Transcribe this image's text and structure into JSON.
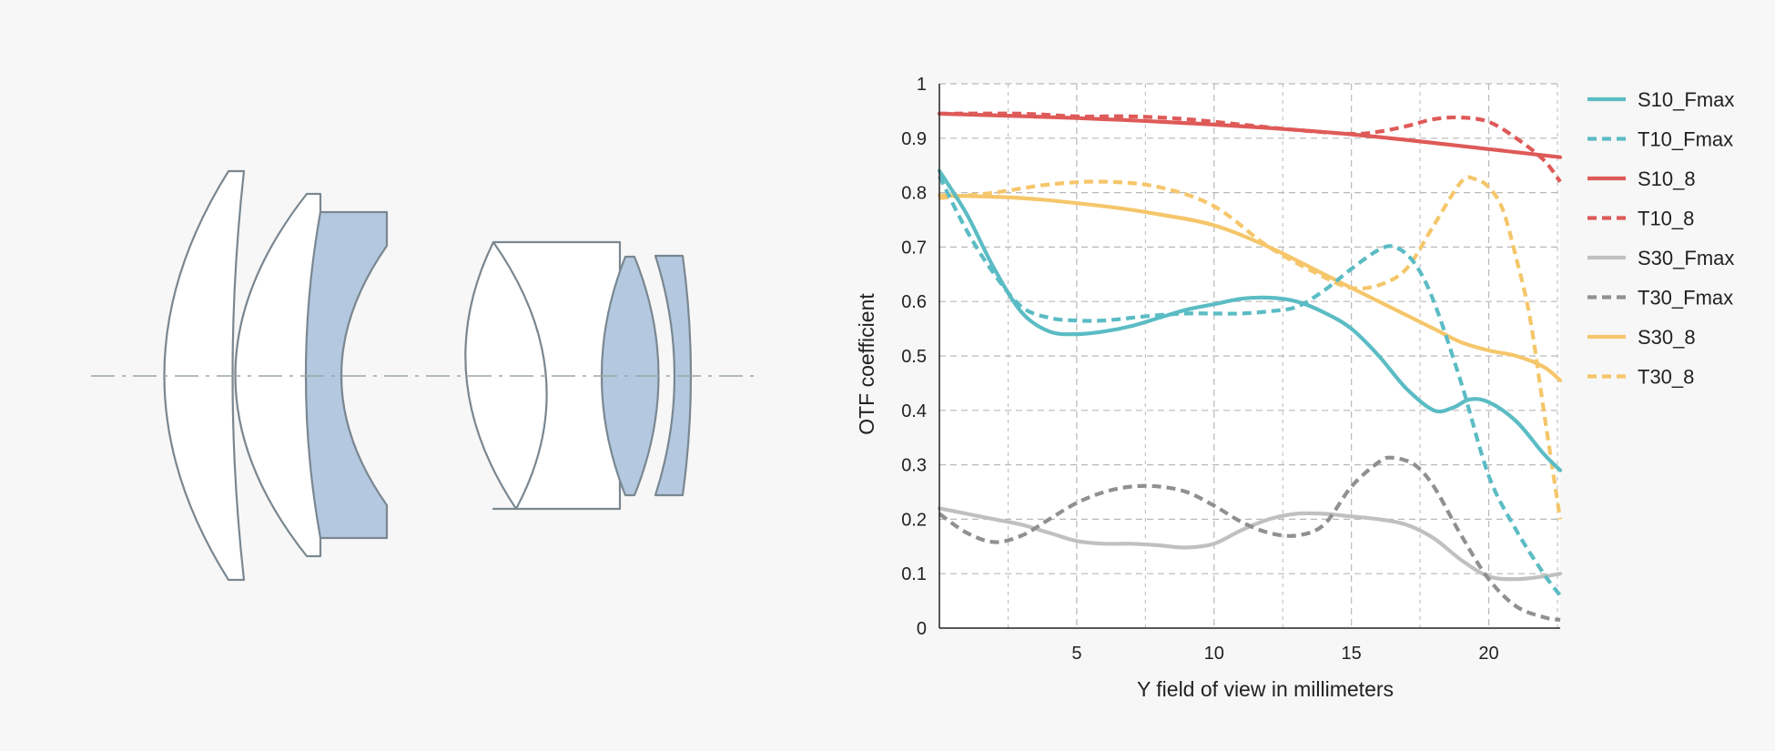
{
  "colors": {
    "background": "#f7f7f7",
    "plot_background": "#ffffff",
    "lens_white": "#ffffff",
    "lens_blue": "#b4c8e0",
    "lens_stroke": "#7a8791",
    "axis_line": "#9aa5a8",
    "grid": "#b8b8b8",
    "teal": "#5bbcc4",
    "red": "#de5a58",
    "gray": "#9e9e9e",
    "lightgray": "#c0c0c0",
    "yellow": "#f5c66a",
    "darkgray": "#909090"
  },
  "diagram": {
    "name": "lens-element-layout",
    "groups": [
      {
        "name": "front-group",
        "elements": [
          "meniscus-1",
          "meniscus-2",
          "concave-blue"
        ]
      },
      {
        "name": "rear-group",
        "elements": [
          "cemented-doublet",
          "biconvex-blue",
          "meniscus-blue"
        ]
      }
    ]
  },
  "chart_data": {
    "type": "line",
    "xlabel": "Y field of view in millimeters",
    "ylabel": "OTF coefficient",
    "xlim": [
      0,
      22.6
    ],
    "ylim": [
      0,
      1
    ],
    "xticks": [
      5,
      10,
      15,
      20
    ],
    "xtick_labels": [
      "5",
      "10",
      "15",
      "20"
    ],
    "yticks": [
      0,
      0.1,
      0.2,
      0.3,
      0.4,
      0.5,
      0.6,
      0.7,
      0.8,
      0.9,
      1
    ],
    "ytick_labels": [
      "0",
      "0.1",
      "0.2",
      "0.3",
      "0.4",
      "0.5",
      "0.6",
      "0.7",
      "0.8",
      "0.9",
      "1"
    ],
    "grid": true,
    "legend_position": "right",
    "series": [
      {
        "name": "S10_Fmax",
        "color_key": "teal",
        "dashed": false,
        "points": [
          [
            0,
            0.84
          ],
          [
            1,
            0.76
          ],
          [
            2,
            0.66
          ],
          [
            3,
            0.58
          ],
          [
            4,
            0.545
          ],
          [
            5,
            0.54
          ],
          [
            6,
            0.545
          ],
          [
            7,
            0.555
          ],
          [
            8,
            0.57
          ],
          [
            9,
            0.585
          ],
          [
            10,
            0.595
          ],
          [
            11,
            0.605
          ],
          [
            12,
            0.607
          ],
          [
            13,
            0.6
          ],
          [
            14,
            0.58
          ],
          [
            15,
            0.55
          ],
          [
            16,
            0.5
          ],
          [
            17,
            0.44
          ],
          [
            18,
            0.4
          ],
          [
            18.7,
            0.405
          ],
          [
            19.3,
            0.42
          ],
          [
            20,
            0.415
          ],
          [
            21,
            0.38
          ],
          [
            22,
            0.32
          ],
          [
            22.6,
            0.29
          ]
        ]
      },
      {
        "name": "T10_Fmax",
        "color_key": "teal",
        "dashed": true,
        "points": [
          [
            0,
            0.83
          ],
          [
            1,
            0.73
          ],
          [
            2,
            0.65
          ],
          [
            3,
            0.59
          ],
          [
            4,
            0.57
          ],
          [
            5,
            0.565
          ],
          [
            6,
            0.565
          ],
          [
            7,
            0.57
          ],
          [
            8,
            0.575
          ],
          [
            9,
            0.578
          ],
          [
            10,
            0.578
          ],
          [
            11,
            0.578
          ],
          [
            12,
            0.582
          ],
          [
            13,
            0.59
          ],
          [
            14,
            0.62
          ],
          [
            15,
            0.66
          ],
          [
            16,
            0.695
          ],
          [
            16.6,
            0.7
          ],
          [
            17.3,
            0.67
          ],
          [
            18,
            0.6
          ],
          [
            19,
            0.45
          ],
          [
            20,
            0.28
          ],
          [
            21,
            0.18
          ],
          [
            22,
            0.1
          ],
          [
            22.6,
            0.06
          ]
        ]
      },
      {
        "name": "S10_8",
        "color_key": "red",
        "dashed": false,
        "points": [
          [
            0,
            0.945
          ],
          [
            5,
            0.937
          ],
          [
            10,
            0.925
          ],
          [
            15,
            0.907
          ],
          [
            20,
            0.88
          ],
          [
            22.6,
            0.865
          ]
        ]
      },
      {
        "name": "T10_8",
        "color_key": "red",
        "dashed": true,
        "points": [
          [
            0,
            0.945
          ],
          [
            3,
            0.945
          ],
          [
            5,
            0.94
          ],
          [
            7,
            0.94
          ],
          [
            9,
            0.935
          ],
          [
            11,
            0.925
          ],
          [
            13,
            0.915
          ],
          [
            15,
            0.908
          ],
          [
            16,
            0.912
          ],
          [
            17,
            0.922
          ],
          [
            18,
            0.935
          ],
          [
            19,
            0.938
          ],
          [
            20,
            0.93
          ],
          [
            21,
            0.9
          ],
          [
            22,
            0.86
          ],
          [
            22.6,
            0.82
          ]
        ]
      },
      {
        "name": "S30_Fmax",
        "color_key": "lightgray",
        "dashed": false,
        "points": [
          [
            0,
            0.22
          ],
          [
            1,
            0.21
          ],
          [
            2,
            0.2
          ],
          [
            3,
            0.19
          ],
          [
            4,
            0.175
          ],
          [
            5,
            0.16
          ],
          [
            6,
            0.155
          ],
          [
            7,
            0.155
          ],
          [
            8,
            0.152
          ],
          [
            9,
            0.148
          ],
          [
            10,
            0.155
          ],
          [
            11,
            0.18
          ],
          [
            12,
            0.2
          ],
          [
            13,
            0.21
          ],
          [
            14,
            0.21
          ],
          [
            15,
            0.205
          ],
          [
            16,
            0.2
          ],
          [
            17,
            0.19
          ],
          [
            18,
            0.165
          ],
          [
            19,
            0.125
          ],
          [
            20,
            0.095
          ],
          [
            21,
            0.09
          ],
          [
            22,
            0.095
          ],
          [
            22.6,
            0.1
          ]
        ]
      },
      {
        "name": "T30_Fmax",
        "color_key": "darkgray",
        "dashed": true,
        "points": [
          [
            0,
            0.21
          ],
          [
            1,
            0.175
          ],
          [
            2,
            0.158
          ],
          [
            3,
            0.17
          ],
          [
            4,
            0.2
          ],
          [
            5,
            0.23
          ],
          [
            6,
            0.25
          ],
          [
            7,
            0.26
          ],
          [
            8,
            0.26
          ],
          [
            9,
            0.25
          ],
          [
            10,
            0.225
          ],
          [
            11,
            0.195
          ],
          [
            12,
            0.175
          ],
          [
            13,
            0.17
          ],
          [
            14,
            0.19
          ],
          [
            15,
            0.26
          ],
          [
            16,
            0.305
          ],
          [
            16.5,
            0.313
          ],
          [
            17.3,
            0.3
          ],
          [
            18,
            0.26
          ],
          [
            19,
            0.17
          ],
          [
            20,
            0.09
          ],
          [
            21,
            0.04
          ],
          [
            22,
            0.02
          ],
          [
            22.6,
            0.015
          ]
        ]
      },
      {
        "name": "S30_8",
        "color_key": "yellow",
        "dashed": false,
        "points": [
          [
            0,
            0.795
          ],
          [
            3,
            0.79
          ],
          [
            6,
            0.775
          ],
          [
            8,
            0.76
          ],
          [
            10,
            0.74
          ],
          [
            12,
            0.7
          ],
          [
            14,
            0.65
          ],
          [
            16,
            0.6
          ],
          [
            18,
            0.55
          ],
          [
            19,
            0.525
          ],
          [
            20,
            0.51
          ],
          [
            21,
            0.5
          ],
          [
            22,
            0.48
          ],
          [
            22.6,
            0.455
          ]
        ]
      },
      {
        "name": "T30_8",
        "color_key": "yellow",
        "dashed": true,
        "points": [
          [
            0,
            0.79
          ],
          [
            2,
            0.8
          ],
          [
            4,
            0.815
          ],
          [
            6,
            0.82
          ],
          [
            8,
            0.81
          ],
          [
            10,
            0.775
          ],
          [
            12,
            0.7
          ],
          [
            14,
            0.645
          ],
          [
            15,
            0.625
          ],
          [
            16,
            0.63
          ],
          [
            17,
            0.66
          ],
          [
            18,
            0.74
          ],
          [
            19,
            0.82
          ],
          [
            19.5,
            0.825
          ],
          [
            20,
            0.81
          ],
          [
            20.5,
            0.77
          ],
          [
            21,
            0.68
          ],
          [
            21.5,
            0.57
          ],
          [
            22,
            0.4
          ],
          [
            22.6,
            0.2
          ]
        ]
      }
    ]
  }
}
